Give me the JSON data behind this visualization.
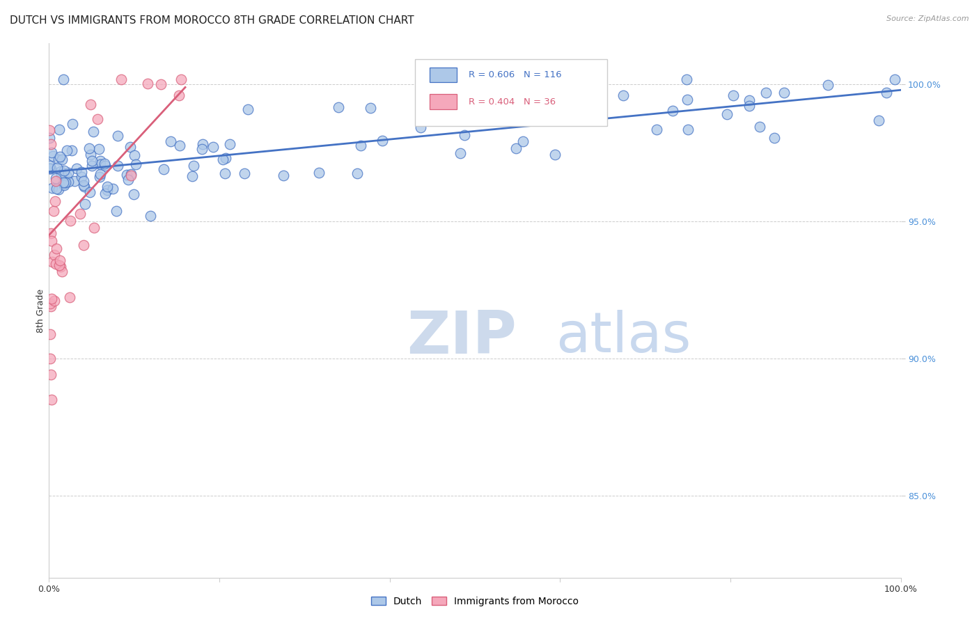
{
  "title": "DUTCH VS IMMIGRANTS FROM MOROCCO 8TH GRADE CORRELATION CHART",
  "source": "Source: ZipAtlas.com",
  "ylabel": "8th Grade",
  "xlim": [
    0.0,
    1.0
  ],
  "ylim": [
    0.82,
    1.015
  ],
  "ytick_labels": [
    "85.0%",
    "90.0%",
    "95.0%",
    "100.0%"
  ],
  "ytick_values": [
    0.85,
    0.9,
    0.95,
    1.0
  ],
  "xtick_values": [
    0.0,
    0.2,
    0.4,
    0.6,
    0.8,
    1.0
  ],
  "xtick_labels": [
    "0.0%",
    "",
    "",
    "",
    "",
    "100.0%"
  ],
  "legend_dutch": "Dutch",
  "legend_morocco": "Immigrants from Morocco",
  "R_dutch": 0.606,
  "N_dutch": 116,
  "R_morocco": 0.404,
  "N_morocco": 36,
  "dutch_color": "#adc8e8",
  "morocco_color": "#f5a8bb",
  "dutch_line_color": "#4472c4",
  "morocco_line_color": "#d95f7a",
  "background_color": "#ffffff",
  "title_fontsize": 11,
  "axis_label_fontsize": 9,
  "tick_fontsize": 9,
  "dutch_line_x0": 0.0,
  "dutch_line_x1": 1.0,
  "dutch_line_y0": 0.968,
  "dutch_line_y1": 0.998,
  "morocco_line_x0": 0.0,
  "morocco_line_x1": 0.16,
  "morocco_line_y0": 0.945,
  "morocco_line_y1": 0.999
}
